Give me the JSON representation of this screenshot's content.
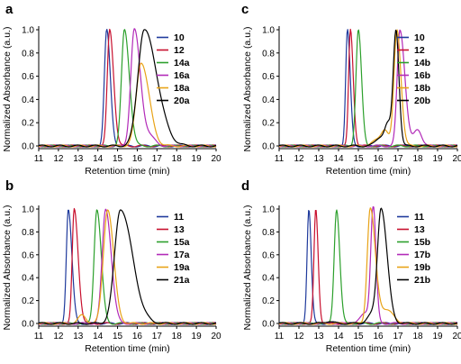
{
  "chart_data": [
    {
      "panel": "a",
      "type": "line",
      "xlabel": "Retention time (min)",
      "ylabel": "Normalized Absorbance (a.u.)",
      "xlim": [
        11,
        20
      ],
      "ylim": [
        0,
        1.0
      ],
      "xticks": [
        "11",
        "12",
        "13",
        "14",
        "15",
        "16",
        "17",
        "18",
        "19",
        "20"
      ],
      "yticks": [
        "0.0",
        "0.2",
        "0.4",
        "0.6",
        "0.8",
        "1.0"
      ],
      "legend_position": "top-right",
      "grid": false,
      "series": [
        {
          "name": "10",
          "color": "#1f3a9c",
          "peak_x": 14.45,
          "peak_y": 1.0
        },
        {
          "name": "12",
          "color": "#c8102e",
          "peak_x": 14.6,
          "peak_y": 1.0
        },
        {
          "name": "14a",
          "color": "#2ca02c",
          "peak_x": 15.35,
          "peak_y": 1.0
        },
        {
          "name": "16a",
          "color": "#b22ab8",
          "peak_x": 15.85,
          "peak_y": 1.0
        },
        {
          "name": "18a",
          "color": "#e8a317",
          "peak_x": 16.2,
          "peak_y": 0.72
        },
        {
          "name": "20a",
          "color": "#000000",
          "peak_x": 16.35,
          "peak_y": 1.0
        }
      ]
    },
    {
      "panel": "b",
      "type": "line",
      "xlabel": "Retention time (min)",
      "ylabel": "Normalized Absorbance (a.u.)",
      "xlim": [
        11,
        20
      ],
      "ylim": [
        0,
        1.0
      ],
      "xticks": [
        "11",
        "12",
        "13",
        "14",
        "15",
        "16",
        "17",
        "18",
        "19",
        "20"
      ],
      "yticks": [
        "0.0",
        "0.2",
        "0.4",
        "0.6",
        "0.8",
        "1.0"
      ],
      "legend_position": "top-right",
      "grid": false,
      "series": [
        {
          "name": "11",
          "color": "#1f3a9c",
          "peak_x": 12.5,
          "peak_y": 1.0
        },
        {
          "name": "13",
          "color": "#c8102e",
          "peak_x": 12.8,
          "peak_y": 1.0
        },
        {
          "name": "15a",
          "color": "#2ca02c",
          "peak_x": 13.95,
          "peak_y": 1.0
        },
        {
          "name": "17a",
          "color": "#b22ab8",
          "peak_x": 14.4,
          "peak_y": 1.0
        },
        {
          "name": "19a",
          "color": "#e8a317",
          "peak_x": 14.5,
          "peak_y": 1.0
        },
        {
          "name": "21a",
          "color": "#000000",
          "peak_x": 15.15,
          "peak_y": 1.0
        }
      ]
    },
    {
      "panel": "c",
      "type": "line",
      "xlabel": "Retention time (min)",
      "ylabel": "Normalized Absorbance (a.u.)",
      "xlim": [
        11,
        20
      ],
      "ylim": [
        0,
        1.0
      ],
      "xticks": [
        "11",
        "12",
        "13",
        "14",
        "15",
        "16",
        "17",
        "18",
        "19",
        "20"
      ],
      "yticks": [
        "0.0",
        "0.2",
        "0.4",
        "0.6",
        "0.8",
        "1.0"
      ],
      "legend_position": "top-right",
      "grid": false,
      "series": [
        {
          "name": "10",
          "color": "#1f3a9c",
          "peak_x": 14.45,
          "peak_y": 1.0
        },
        {
          "name": "12",
          "color": "#c8102e",
          "peak_x": 14.6,
          "peak_y": 1.0
        },
        {
          "name": "14b",
          "color": "#2ca02c",
          "peak_x": 15.0,
          "peak_y": 1.0
        },
        {
          "name": "16b",
          "color": "#b22ab8",
          "peak_x": 17.1,
          "peak_y": 1.0
        },
        {
          "name": "18b",
          "color": "#e8a317",
          "peak_x": 16.95,
          "peak_y": 1.0
        },
        {
          "name": "20b",
          "color": "#000000",
          "peak_x": 16.9,
          "peak_y": 1.0
        }
      ]
    },
    {
      "panel": "d",
      "type": "line",
      "xlabel": "Retention time (min)",
      "ylabel": "Normalized Absorbance (a.u.)",
      "xlim": [
        11,
        20
      ],
      "ylim": [
        0,
        1.0
      ],
      "xticks": [
        "11",
        "12",
        "13",
        "14",
        "15",
        "16",
        "17",
        "18",
        "19",
        "20"
      ],
      "yticks": [
        "0.0",
        "0.2",
        "0.4",
        "0.6",
        "0.8",
        "1.0"
      ],
      "legend_position": "top-right",
      "grid": false,
      "series": [
        {
          "name": "11",
          "color": "#1f3a9c",
          "peak_x": 12.5,
          "peak_y": 1.0
        },
        {
          "name": "13",
          "color": "#c8102e",
          "peak_x": 12.85,
          "peak_y": 1.0
        },
        {
          "name": "15b",
          "color": "#2ca02c",
          "peak_x": 13.9,
          "peak_y": 1.0
        },
        {
          "name": "17b",
          "color": "#b22ab8",
          "peak_x": 15.75,
          "peak_y": 1.0
        },
        {
          "name": "19b",
          "color": "#e8a317",
          "peak_x": 15.6,
          "peak_y": 1.0
        },
        {
          "name": "21b",
          "color": "#000000",
          "peak_x": 16.15,
          "peak_y": 1.0
        }
      ]
    }
  ]
}
